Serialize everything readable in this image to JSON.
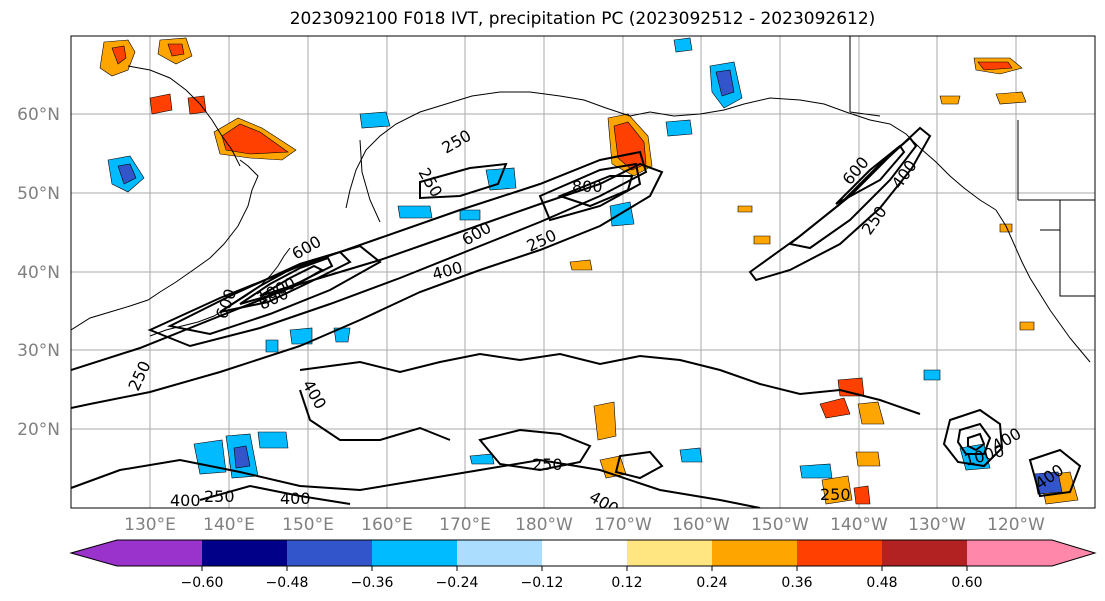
{
  "title": "2023092100 F018 IVT, precipitation PC (2023092512 - 2023092612)",
  "map": {
    "latitude_labels": [
      "60°N",
      "50°N",
      "40°N",
      "30°N",
      "20°N"
    ],
    "longitude_labels": [
      "130°E",
      "140°E",
      "150°E",
      "160°E",
      "170°E",
      "180°W",
      "170°W",
      "160°W",
      "150°W",
      "140°W",
      "130°W",
      "120°W"
    ],
    "contour_labels": [
      "250",
      "250",
      "600",
      "800",
      "600",
      "250",
      "400",
      "800",
      "1000",
      "250",
      "400",
      "250",
      "400",
      "250",
      "250",
      "400",
      "400",
      "600",
      "400",
      "250",
      "600",
      "1000",
      "400",
      "400"
    ],
    "fields": [
      "IVT",
      "precipitation PC"
    ]
  },
  "colorbar": {
    "tick_labels": [
      "−0.60",
      "−0.48",
      "−0.36",
      "−0.24",
      "−0.12",
      "0.12",
      "0.24",
      "0.36",
      "0.48",
      "0.60"
    ],
    "colors": [
      "#9933cc",
      "#000088",
      "#3355cc",
      "#00bbff",
      "#aaddff",
      "#ffffff",
      "#ffe680",
      "#ffa500",
      "#ff4000",
      "#b22222",
      "#ff88aa"
    ],
    "extend": "both"
  },
  "colors": {
    "contour": "#000000",
    "grid": "#aaaaaa",
    "coastline": "#000000",
    "axis_label": "#808080"
  }
}
